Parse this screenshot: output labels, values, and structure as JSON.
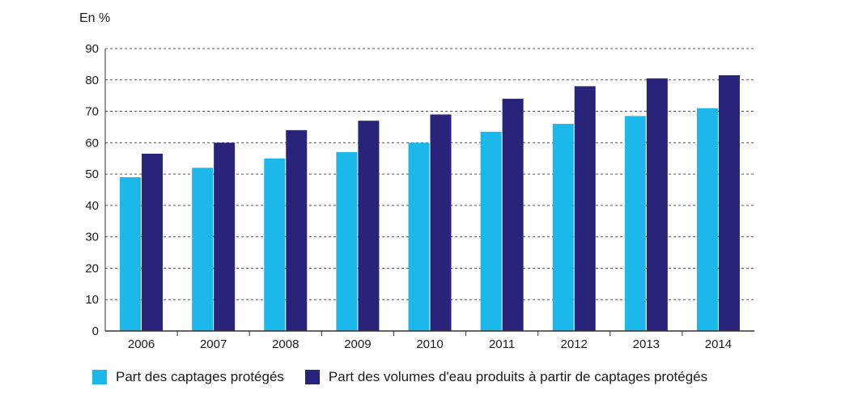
{
  "chart_data": {
    "type": "bar",
    "unit_label": "En %",
    "categories": [
      "2006",
      "2007",
      "2008",
      "2009",
      "2010",
      "2011",
      "2012",
      "2013",
      "2014"
    ],
    "series": [
      {
        "name": "Part des captages protégés",
        "color": "#1cb8ea",
        "values": [
          49,
          52,
          55,
          57,
          60,
          63.5,
          66,
          68.5,
          71
        ]
      },
      {
        "name": "Part des volumes d'eau produits à partir de captages protégés",
        "color": "#29237a",
        "values": [
          56.5,
          60,
          64,
          67,
          69,
          74,
          78,
          80.5,
          81.5
        ]
      }
    ],
    "ylim": [
      0,
      90
    ],
    "yticks": [
      0,
      10,
      20,
      30,
      40,
      50,
      60,
      70,
      80,
      90
    ],
    "grid": true,
    "legend_position": "bottom"
  }
}
